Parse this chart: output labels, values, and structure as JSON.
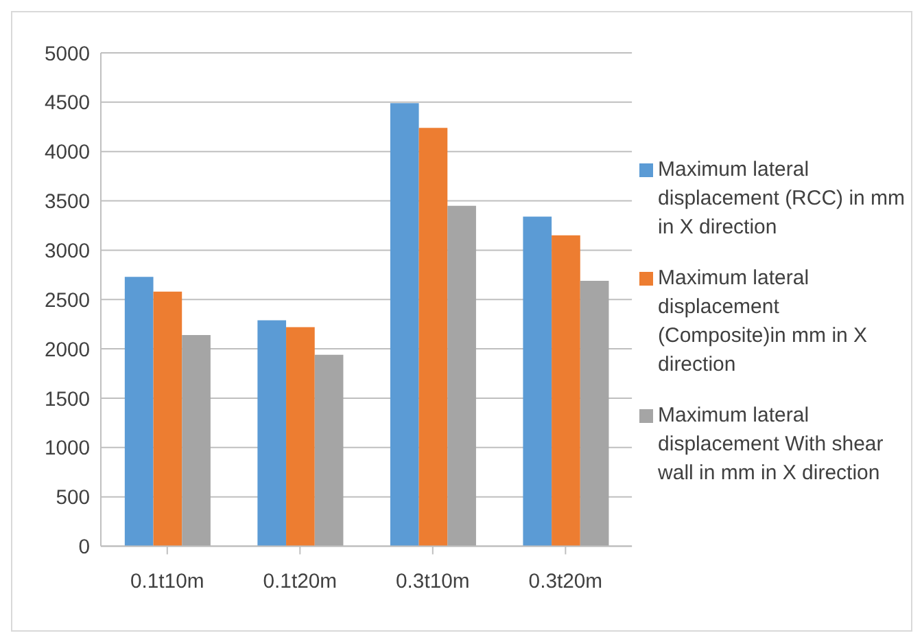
{
  "chart_data": {
    "type": "bar",
    "categories": [
      "0.1t10m",
      "0.1t20m",
      "0.3t10m",
      "0.3t20m"
    ],
    "series": [
      {
        "name": "Maximum lateral displacement (RCC) in mm in X direction",
        "color": "#5b9bd5",
        "values": [
          2730,
          2290,
          4490,
          3340
        ]
      },
      {
        "name": "Maximum lateral displacement (Composite)in mm in X direction",
        "color": "#ed7d31",
        "values": [
          2580,
          2220,
          4240,
          3150
        ]
      },
      {
        "name": "Maximum lateral displacement With shear wall in mm in X direction",
        "color": "#a5a5a5",
        "values": [
          2140,
          1940,
          3450,
          2690
        ]
      }
    ],
    "ylim": [
      0,
      5000
    ],
    "yticks": [
      0,
      500,
      1000,
      1500,
      2000,
      2500,
      3000,
      3500,
      4000,
      4500,
      5000
    ],
    "grid": "y",
    "legend": "right"
  }
}
